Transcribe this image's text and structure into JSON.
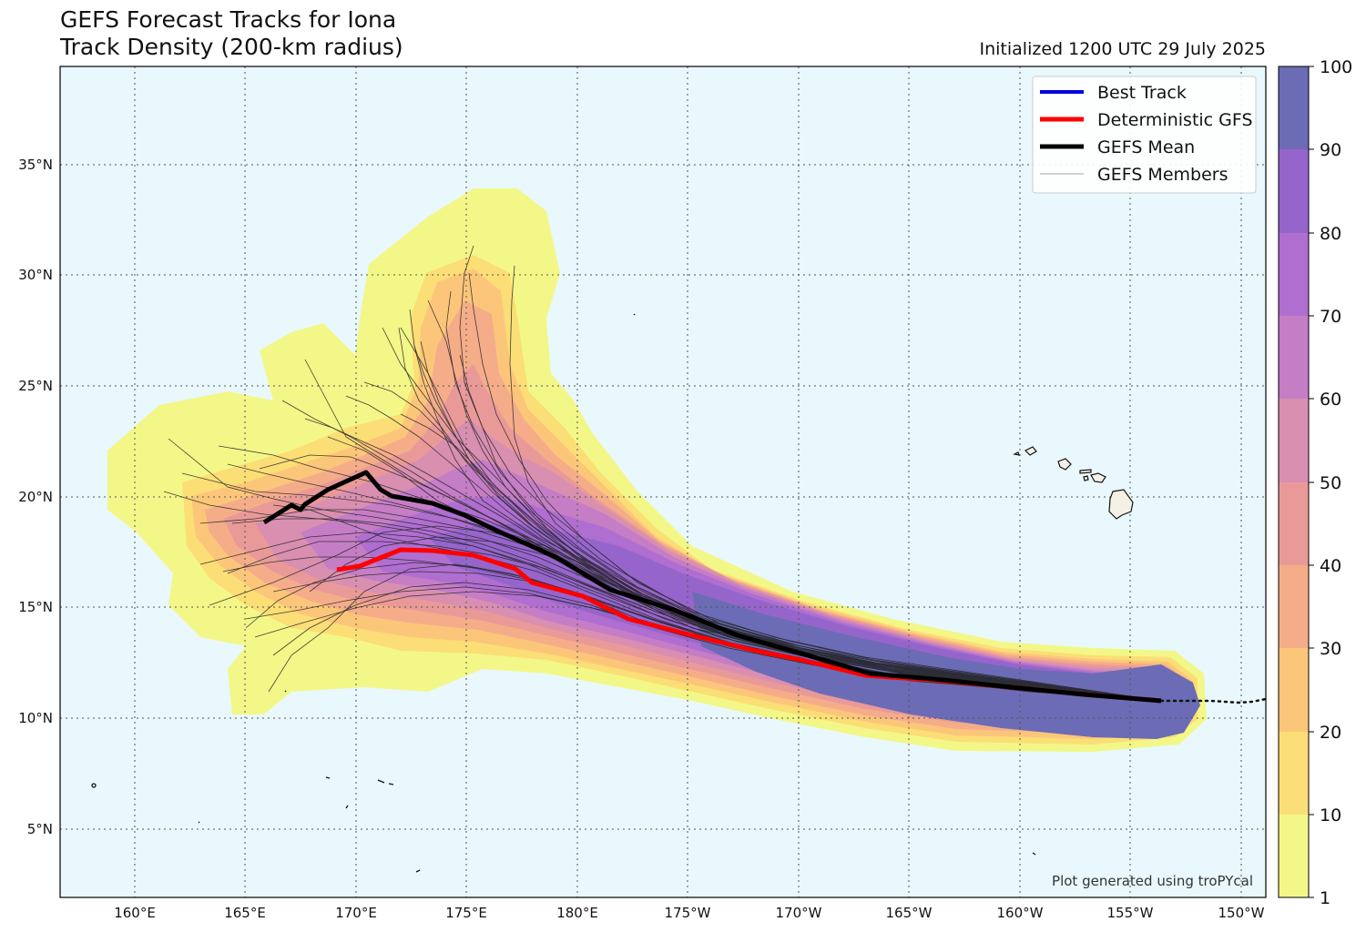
{
  "title": {
    "line1": "GEFS Forecast Tracks for Iona",
    "line2": "Track Density (200-km radius)",
    "initialized": "Initialized 1200 UTC 29 July 2025"
  },
  "map": {
    "projection": "PlateCarree (central longitude 180)",
    "lon_range": [
      "156.5°E",
      "150.2°W"
    ],
    "lat_range": [
      "2.1°N",
      "39.6°N"
    ],
    "background_color": "#e9f8fc",
    "grid": "dotted",
    "x_ticks": [
      "160°E",
      "165°E",
      "170°E",
      "175°E",
      "180°E",
      "175°W",
      "170°W",
      "165°W",
      "160°W",
      "155°W",
      "150°W"
    ],
    "y_ticks": [
      "5°N",
      "10°N",
      "15°N",
      "20°N",
      "25°N",
      "30°N",
      "35°N"
    ],
    "land": "Hawaiian Islands and small Pacific islands (outlines)"
  },
  "legend": {
    "placement": "top-right",
    "items": [
      {
        "label": "Best Track",
        "color": "#0000dd",
        "style": "thick line"
      },
      {
        "label": "Deterministic GFS",
        "color": "#ff0000",
        "style": "thick line"
      },
      {
        "label": "GEFS Mean",
        "color": "#000000",
        "style": "thick line"
      },
      {
        "label": "GEFS Members",
        "color": "#888888",
        "style": "thin line"
      }
    ]
  },
  "colorbar": {
    "ticks": [
      "1",
      "10",
      "20",
      "30",
      "40",
      "50",
      "60",
      "70",
      "80",
      "90",
      "100"
    ],
    "colors": [
      "#f3f788",
      "#fbde76",
      "#fcc67a",
      "#f5ad89",
      "#e99a98",
      "#d98fb0",
      "#c57ec6",
      "#af6ed0",
      "#9665cc",
      "#6b6cb5"
    ]
  },
  "credit": "Plot generated using troPYcal",
  "chart_data": {
    "type": "track_map",
    "best_track": {
      "name": "Best Track",
      "lon": [
        -153.5,
        -150.5
      ],
      "lat": [
        10.8,
        10.8
      ]
    },
    "deterministic_gfs": {
      "name": "Deterministic GFS",
      "lon": [
        -153.5,
        -157,
        -160,
        -163,
        -167,
        -170,
        -173,
        -176,
        -177.5,
        -179.5,
        178.5,
        177.5,
        177,
        175,
        173.5,
        172.3,
        171.5,
        170,
        169
      ],
      "lat": [
        10.8,
        11.0,
        11.3,
        11.6,
        11.8,
        12.5,
        13.0,
        13.8,
        14.1,
        14.4,
        15.3,
        16.0,
        16.7,
        17.1,
        17.5,
        17.6,
        17.2,
        16.8,
        16.7
      ]
    },
    "gefs_mean": {
      "name": "GEFS Mean",
      "lon": [
        -153.5,
        -157,
        -160,
        -163,
        -166,
        -169,
        -172,
        -175,
        -178,
        179,
        177,
        175.5,
        173.5,
        171.8,
        171.3,
        170.5,
        169,
        168,
        167.7,
        167.3,
        166
      ],
      "lat": [
        10.8,
        11.1,
        11.4,
        11.7,
        11.9,
        12.5,
        13.3,
        14.3,
        15.4,
        16.8,
        17.8,
        18.6,
        19.7,
        20.0,
        20.3,
        21.1,
        20.3,
        19.5,
        19.4,
        19.6,
        18.8
      ]
    },
    "track_density_percent_levels": [
      1,
      10,
      20,
      30,
      40,
      50,
      60,
      70,
      80,
      90,
      100
    ]
  }
}
